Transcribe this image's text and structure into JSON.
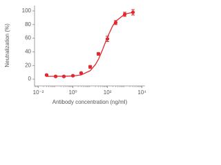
{
  "chart_data": {
    "type": "scatter",
    "log_x": true,
    "xlabel": "Antibody concentration (ng/ml)",
    "ylabel": "Neutralization (%)",
    "xlim": [
      0.006,
      15000
    ],
    "ylim": [
      -10,
      108
    ],
    "xticks": [
      {
        "value": 0.01,
        "label": "10⁻²"
      },
      {
        "value": 1,
        "label": "10⁰"
      },
      {
        "value": 100,
        "label": "10²"
      },
      {
        "value": 10000,
        "label": "10⁴"
      }
    ],
    "yticks": [
      0,
      20,
      40,
      60,
      80,
      100
    ],
    "series": [
      {
        "color": "#e0282e",
        "x": [
          0.03,
          0.1,
          0.3,
          1,
          3,
          10,
          30,
          100,
          300,
          1000,
          3000
        ],
        "values": [
          6,
          4,
          4,
          5,
          9,
          18,
          37,
          59,
          83,
          95,
          98
        ],
        "errors": [
          1,
          1,
          1,
          1,
          1,
          2,
          2,
          4,
          3,
          3,
          4
        ]
      },
      {
        "type": "line",
        "color": "#e0282e",
        "x": [
          0.03,
          0.1,
          0.3,
          1,
          3,
          10,
          20,
          30,
          50,
          70,
          100,
          200,
          300,
          1000,
          3000
        ],
        "values": [
          4,
          4.1,
          4.2,
          4.6,
          6.1,
          12.4,
          21.3,
          29,
          42,
          51.5,
          61.6,
          78,
          84.8,
          95.3,
          98
        ]
      }
    ]
  }
}
